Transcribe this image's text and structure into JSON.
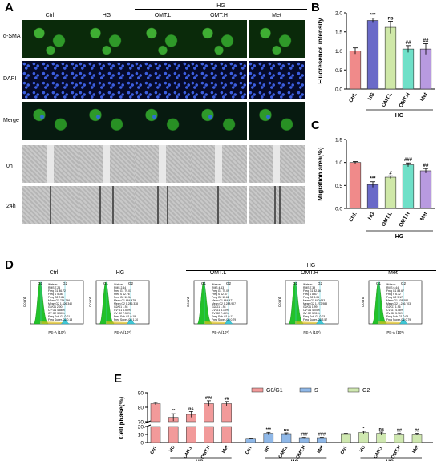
{
  "panel_labels": {
    "A": "A",
    "B": "B",
    "C": "C",
    "D": "D",
    "E": "E"
  },
  "panelA": {
    "group_label": "HG",
    "columns": [
      "Ctrl.",
      "HG",
      "OMT.L",
      "OMT.H",
      "Met"
    ],
    "rows": [
      "α-SMA",
      "DAPI",
      "Merge",
      "0h",
      "24h"
    ]
  },
  "panelD": {
    "group_label": "HG",
    "titles": [
      "Ctrl.",
      "HG",
      "OMT.L",
      "OMT.H",
      "Met"
    ],
    "gates": [
      "G1",
      "G2"
    ],
    "xlabel": "PE-A (10⁵)",
    "ylabel": "Count",
    "stats": [
      {
        "watson": "Watson",
        "rms": "RMS 7.24",
        "g1": "Freq G1 86.72",
        "s": "Freq S 5.36",
        "g2": "Freq G2 7.81",
        "mean_g1": "Mean G1 714.746",
        "mean_g2": "Mean G2 1,426.340",
        "g2g1": "G2/G1 2.00",
        "cvg1": "CV G1 4.86%",
        "cvg2": "CV G2 3.30%",
        "sub": "Freq Sub-G1 0.01",
        "super": "Freq Super-G2 0.13"
      },
      {
        "watson": "Watson",
        "rms": "RMS 2.44",
        "g1": "Freq G1 79.01",
        "s": "Freq S 12.76",
        "g2": "Freq G2 10.54",
        "mean_g1": "Mean G1 664.479",
        "mean_g2": "Mean G2 1,286.338",
        "g2g1": "G2/G1 1.94",
        "cvg1": "CV G1 6.56%",
        "cvg2": "CV G2 7.58%",
        "sub": "Freq Sub-G1 0.19",
        "super": "Freq Super-G2 1.20"
      },
      {
        "watson": "Watson",
        "rms": "RMS 4.63",
        "g1": "Freq G1 75.09",
        "s": "Freq S 12.37",
        "g2": "Freq G2 11.61",
        "mean_g1": "Mean G1 664.471",
        "mean_g2": "Mean G2 1,288.907",
        "g2g1": "G2/G1 1.94",
        "cvg1": "CV G1 5.16%",
        "cvg2": "CV G2 7.43%",
        "sub": "Freq Sub-G1 0.13",
        "super": "Freq Super-G2 0.79"
      },
      {
        "watson": "Watson",
        "rms": "RMS 7.39",
        "g1": "Freq G1 82.46",
        "s": "Freq S 8.67",
        "g2": "Freq G2 8.06",
        "mean_g1": "Mean G1 640.643",
        "mean_g2": "Mean G2 1,272.988",
        "g2g1": "G2/G1 1.99",
        "cvg1": "CV G1 4.04%",
        "cvg2": "CV G2 5.91%",
        "sub": "Freq Sub-G1 0.03",
        "super": "Freq Super-G2 3.57"
      },
      {
        "watson": "Watson",
        "rms": "RMS 6.44",
        "g1": "Freq G1 83.67",
        "s": "Freq S 6.32",
        "g2": "Freq G2 9.17",
        "mean_g1": "Mean G1 638.552",
        "mean_g2": "Mean G2 1,246.703",
        "g2g1": "G2/G1 1.96",
        "cvg1": "CV G1 4.08%",
        "cvg2": "CV G2 5.96%",
        "sub": "Freq Sub-G1 0.05",
        "super": "Freq Super-G2 0.79"
      }
    ]
  },
  "colors": {
    "ctrl": "#f08a8a",
    "hg": "#6a6ac8",
    "omtl": "#cfe8a8",
    "omth": "#6fe0c8",
    "met": "#b89ae0",
    "g0": "#f29a9a",
    "s": "#8fb8e8",
    "g2": "#cfe8b0",
    "facs_g1": "#22c22a",
    "facs_g2": "#3fc8d8",
    "facs_s": "#e0c020"
  },
  "chart_data": [
    {
      "type": "bar",
      "panel": "B",
      "categories": [
        "Ctrl.",
        "HG",
        "OMT.L",
        "OMT.H",
        "Met"
      ],
      "values": [
        1.0,
        1.8,
        1.62,
        1.05,
        1.05
      ],
      "errors": [
        0.08,
        0.06,
        0.16,
        0.09,
        0.14
      ],
      "annotations": [
        "",
        "***",
        "ns",
        "##",
        "##"
      ],
      "ylabel": "Fluoresence intensity",
      "group_label": "HG",
      "ylim": [
        0,
        2.0
      ],
      "yticks": [
        "0.0",
        "0.5",
        "1.0",
        "1.5",
        "2.0"
      ]
    },
    {
      "type": "bar",
      "panel": "C",
      "categories": [
        "Ctrl.",
        "HG",
        "OMT.L",
        "OMT.H",
        "Met"
      ],
      "values": [
        1.0,
        0.52,
        0.68,
        0.95,
        0.82
      ],
      "errors": [
        0.02,
        0.06,
        0.03,
        0.04,
        0.05
      ],
      "annotations": [
        "",
        "***",
        "#",
        "###",
        "##"
      ],
      "ylabel": "Migration area(%)",
      "group_label": "HG",
      "ylim": [
        0,
        1.5
      ],
      "yticks": [
        "0.0",
        "0.5",
        "1.0",
        "1.5"
      ]
    },
    {
      "type": "bar",
      "panel": "E",
      "legend": [
        "G0/G1",
        "S",
        "G2"
      ],
      "ylabel": "Cell phase(%)",
      "yticks": [
        "0",
        "10",
        "20",
        "70",
        "80",
        "90"
      ],
      "groups": [
        {
          "name": "G0/G1",
          "categories": [
            "Ctrl.",
            "HG",
            "OMT.L",
            "OMT.H",
            "Met"
          ],
          "values": [
            82.5,
            73,
            75,
            82.5,
            82.5
          ],
          "errors": [
            0.8,
            2.5,
            2,
            2,
            1.5
          ],
          "annotations": [
            "",
            "**",
            "ns",
            "###",
            "##"
          ]
        },
        {
          "name": "S",
          "categories": [
            "Ctrl.",
            "HG",
            "OMT.L",
            "OMT.H",
            "Met"
          ],
          "values": [
            5.2,
            11.5,
            11.0,
            6.0,
            6.0
          ],
          "errors": [
            0.3,
            1.2,
            1.0,
            0.4,
            0.5
          ],
          "annotations": [
            "",
            "***",
            "ns",
            "###",
            "###"
          ]
        },
        {
          "name": "G2",
          "categories": [
            "Ctrl.",
            "HG",
            "OMT.L",
            "OMT.H",
            "Met"
          ],
          "values": [
            11,
            12.5,
            11.5,
            10.5,
            10.5
          ],
          "errors": [
            0.5,
            1.5,
            1.5,
            1.2,
            1.0
          ],
          "annotations": [
            "",
            "*",
            "ns",
            "##",
            "##"
          ]
        }
      ],
      "group_label": "HG"
    }
  ]
}
